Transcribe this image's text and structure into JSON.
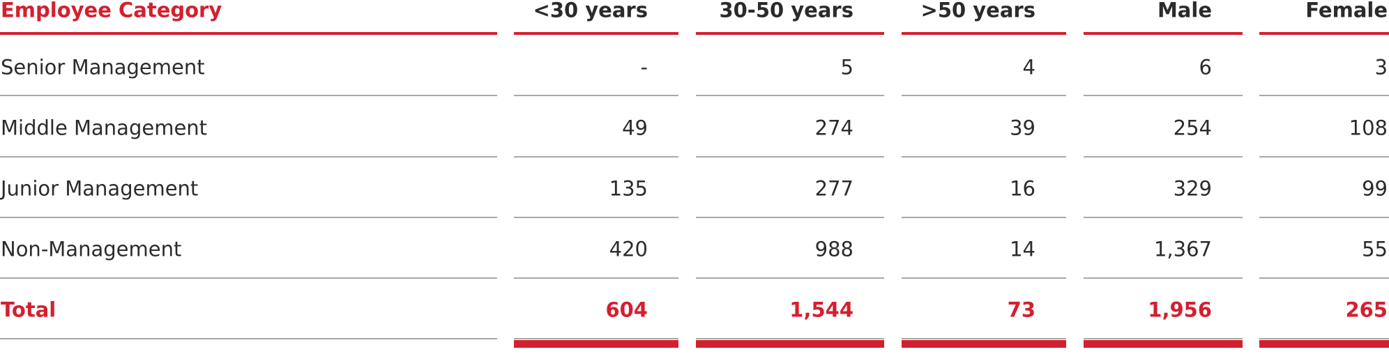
{
  "table": {
    "header": [
      "Employee Category",
      "<30 years",
      "30-50 years",
      ">50 years",
      "Male",
      "Female"
    ],
    "rows": [
      [
        "Senior Management",
        "-",
        "5",
        "4",
        "6",
        "3"
      ],
      [
        "Middle Management",
        "49",
        "274",
        "39",
        "254",
        "108"
      ],
      [
        "Junior Management",
        "135",
        "277",
        "16",
        "329",
        "99"
      ],
      [
        "Non-Management",
        "420",
        "988",
        "14",
        "1,367",
        "55"
      ]
    ],
    "total": [
      "Total",
      "604",
      "1,544",
      "73",
      "1,956",
      "265"
    ]
  }
}
